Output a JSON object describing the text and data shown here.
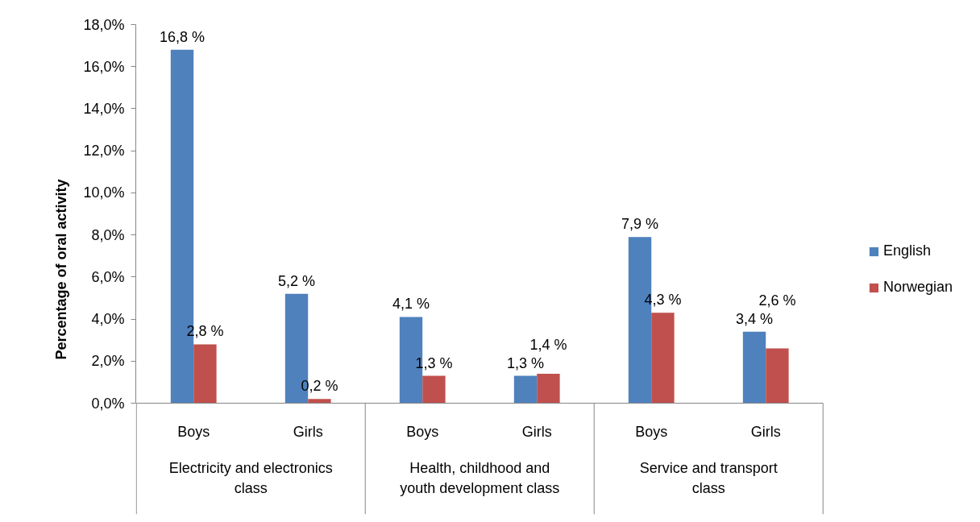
{
  "chart_data": {
    "type": "bar",
    "ylabel": "Percentage of oral activity",
    "categories": [
      "Boys",
      "Girls",
      "Boys",
      "Girls",
      "Boys",
      "Girls"
    ],
    "annotations": [
      "Electricity and electronics class",
      "Health, childhood and youth development class",
      "Service and transport class"
    ],
    "series": [
      {
        "name": "English",
        "color": "#4f81bd",
        "values": [
          16.8,
          5.2,
          4.1,
          1.3,
          7.9,
          3.4
        ],
        "value_labels": [
          "16,8 %",
          "5,2 %",
          "4,1 %",
          "1,3 %",
          "7,9 %",
          "3,4 %"
        ]
      },
      {
        "name": "Norwegian",
        "color": "#c0504d",
        "values": [
          2.8,
          0.2,
          1.3,
          1.4,
          4.3,
          2.6
        ],
        "value_labels": [
          "2,8 %",
          "0,2 %",
          "1,3 %",
          "1,4 %",
          "4,3 %",
          "2,6 %"
        ]
      }
    ],
    "ylim": [
      0,
      18
    ],
    "yticks": [
      {
        "value": 0,
        "label": "0,0%"
      },
      {
        "value": 2,
        "label": "2,0%"
      },
      {
        "value": 4,
        "label": "4,0%"
      },
      {
        "value": 6,
        "label": "6,0%"
      },
      {
        "value": 8,
        "label": "8,0%"
      },
      {
        "value": 10,
        "label": "10,0%"
      },
      {
        "value": 12,
        "label": "12,0%"
      },
      {
        "value": 14,
        "label": "14,0%"
      },
      {
        "value": 16,
        "label": "16,0%"
      },
      {
        "value": 18,
        "label": "18,0%"
      }
    ],
    "grid": false,
    "legend": "right"
  }
}
